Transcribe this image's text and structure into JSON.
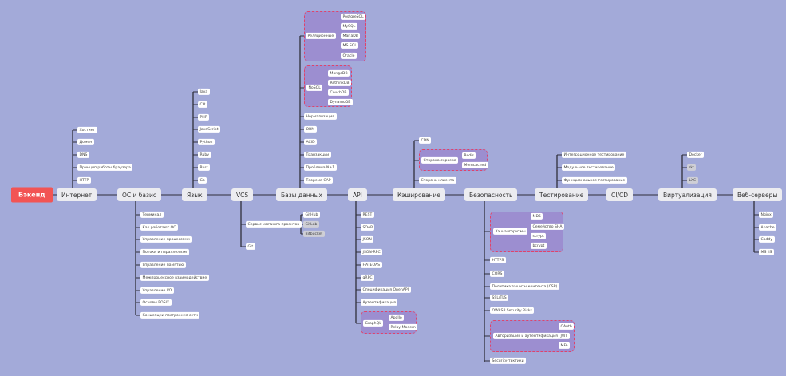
{
  "root": "Бэкенд",
  "colors": {
    "background": "#a3aad9",
    "root": "#f25454",
    "group_fill": "#9c8ed0",
    "group_border": "#e0436a"
  },
  "branches": {
    "internet": {
      "label": "Интернет",
      "items": [
        "Хостинг",
        "Домен",
        "DNS",
        "Принцип работы браузера",
        "HTTP"
      ]
    },
    "os": {
      "label": "ОС и базис",
      "items": [
        "Терминал",
        "Как работают ОС",
        "Управление процессами",
        "Потоки и параллелизм",
        "Управление памятью",
        "Межпроцессное взаимодействие",
        "Управление I/O",
        "Основы POSIX",
        "Концепции построения сети"
      ]
    },
    "lang": {
      "label": "Язык",
      "items": [
        "Java",
        "C#",
        "PHP",
        "JavaScript",
        "Python",
        "Ruby",
        "Rust",
        "Go"
      ]
    },
    "vcs": {
      "label": "VCS",
      "hosting": {
        "label": "Сервис хостинга проектов",
        "items": [
          "GitHub",
          "GitLab",
          "Bitbucket"
        ]
      },
      "git": "Git"
    },
    "db": {
      "label": "Базы данных",
      "relational": {
        "label": "Реляционные",
        "items": [
          "PostgreSQL",
          "MySQL",
          "MariaDB",
          "MS SQL",
          "Oracle"
        ]
      },
      "nosql": {
        "label": "NoSQL",
        "items": [
          "MongoDB",
          "RethinkDB",
          "CouchDB",
          "DynamoDB"
        ]
      },
      "items": [
        "Нормализация",
        "ORM",
        "ACID",
        "Транзакции",
        "Проблема N+1",
        "Теорема CAP"
      ]
    },
    "api": {
      "label": "API",
      "items": [
        "REST",
        "SOAP",
        "JSON",
        "JSON-RPC",
        "HATEOAS",
        "gRPC",
        "Спецификация OpenAPI",
        "Аутентификация"
      ],
      "graphql": {
        "label": "GraphQL",
        "items": [
          "Apollo",
          "Relay Modern"
        ]
      }
    },
    "cache": {
      "label": "Кэширование",
      "cdn": "CDN",
      "server": {
        "label": "Сторона сервера",
        "items": [
          "Redis",
          "Memcached"
        ]
      },
      "client": "Сторона клиента"
    },
    "security": {
      "label": "Безопасность",
      "hash": {
        "label": "Хэш-алгоритмы",
        "items": [
          "MD5",
          "Семейство SHA",
          "scrypt",
          "bcrypt"
        ]
      },
      "items": [
        "HTTPS",
        "CORS",
        "Политика защиты контента (CSP)",
        "SSL/TLS",
        "OWASP Security Risks"
      ],
      "auth": {
        "label": "Авторизация и аутентификация",
        "items": [
          "OAuth",
          "JWT",
          "MFA"
        ]
      },
      "tactics": "Security-тактики"
    },
    "testing": {
      "label": "Тестирование",
      "items": [
        "Интеграционное тестирование",
        "Модульное тестирование",
        "Функциональное тестирование"
      ]
    },
    "cicd": {
      "label": "CI/CD"
    },
    "virt": {
      "label": "Виртуализация",
      "items": [
        "Docker",
        "rkt",
        "LXC"
      ]
    },
    "web": {
      "label": "Веб-серверы",
      "items": [
        "Nginx",
        "Apache",
        "Caddy",
        "MS IIS"
      ]
    }
  }
}
